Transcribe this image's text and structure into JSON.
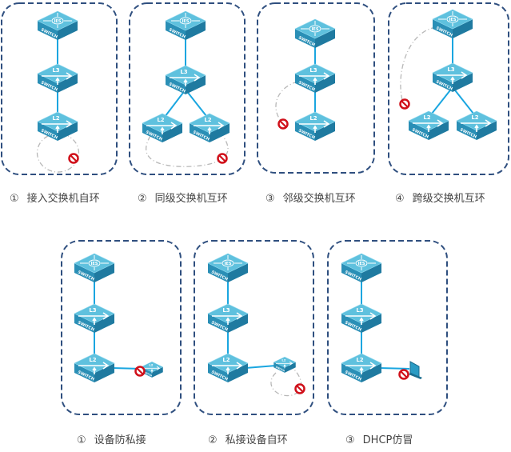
{
  "labels": {
    "ies": "IES",
    "l3": "L3",
    "l2": "L2",
    "switch": "SWITCH"
  },
  "colors": {
    "border": "#2f4f7f",
    "link": "#1aa6e0",
    "switch_top": "#5fc1de",
    "switch_side": "#2a8fb6",
    "forbidden": "#d0101a",
    "loop": "#b8b8b8"
  },
  "top_row": [
    {
      "num": "①",
      "caption": "接入交换机自环"
    },
    {
      "num": "②",
      "caption": "同级交换机互环"
    },
    {
      "num": "③",
      "caption": "邻级交换机互环"
    },
    {
      "num": "④",
      "caption": "跨级交换机互环"
    }
  ],
  "bottom_row": [
    {
      "num": "①",
      "caption": "设备防私接"
    },
    {
      "num": "②",
      "caption": "私接设备自环"
    },
    {
      "num": "③",
      "caption": "DHCP仿冒"
    }
  ]
}
